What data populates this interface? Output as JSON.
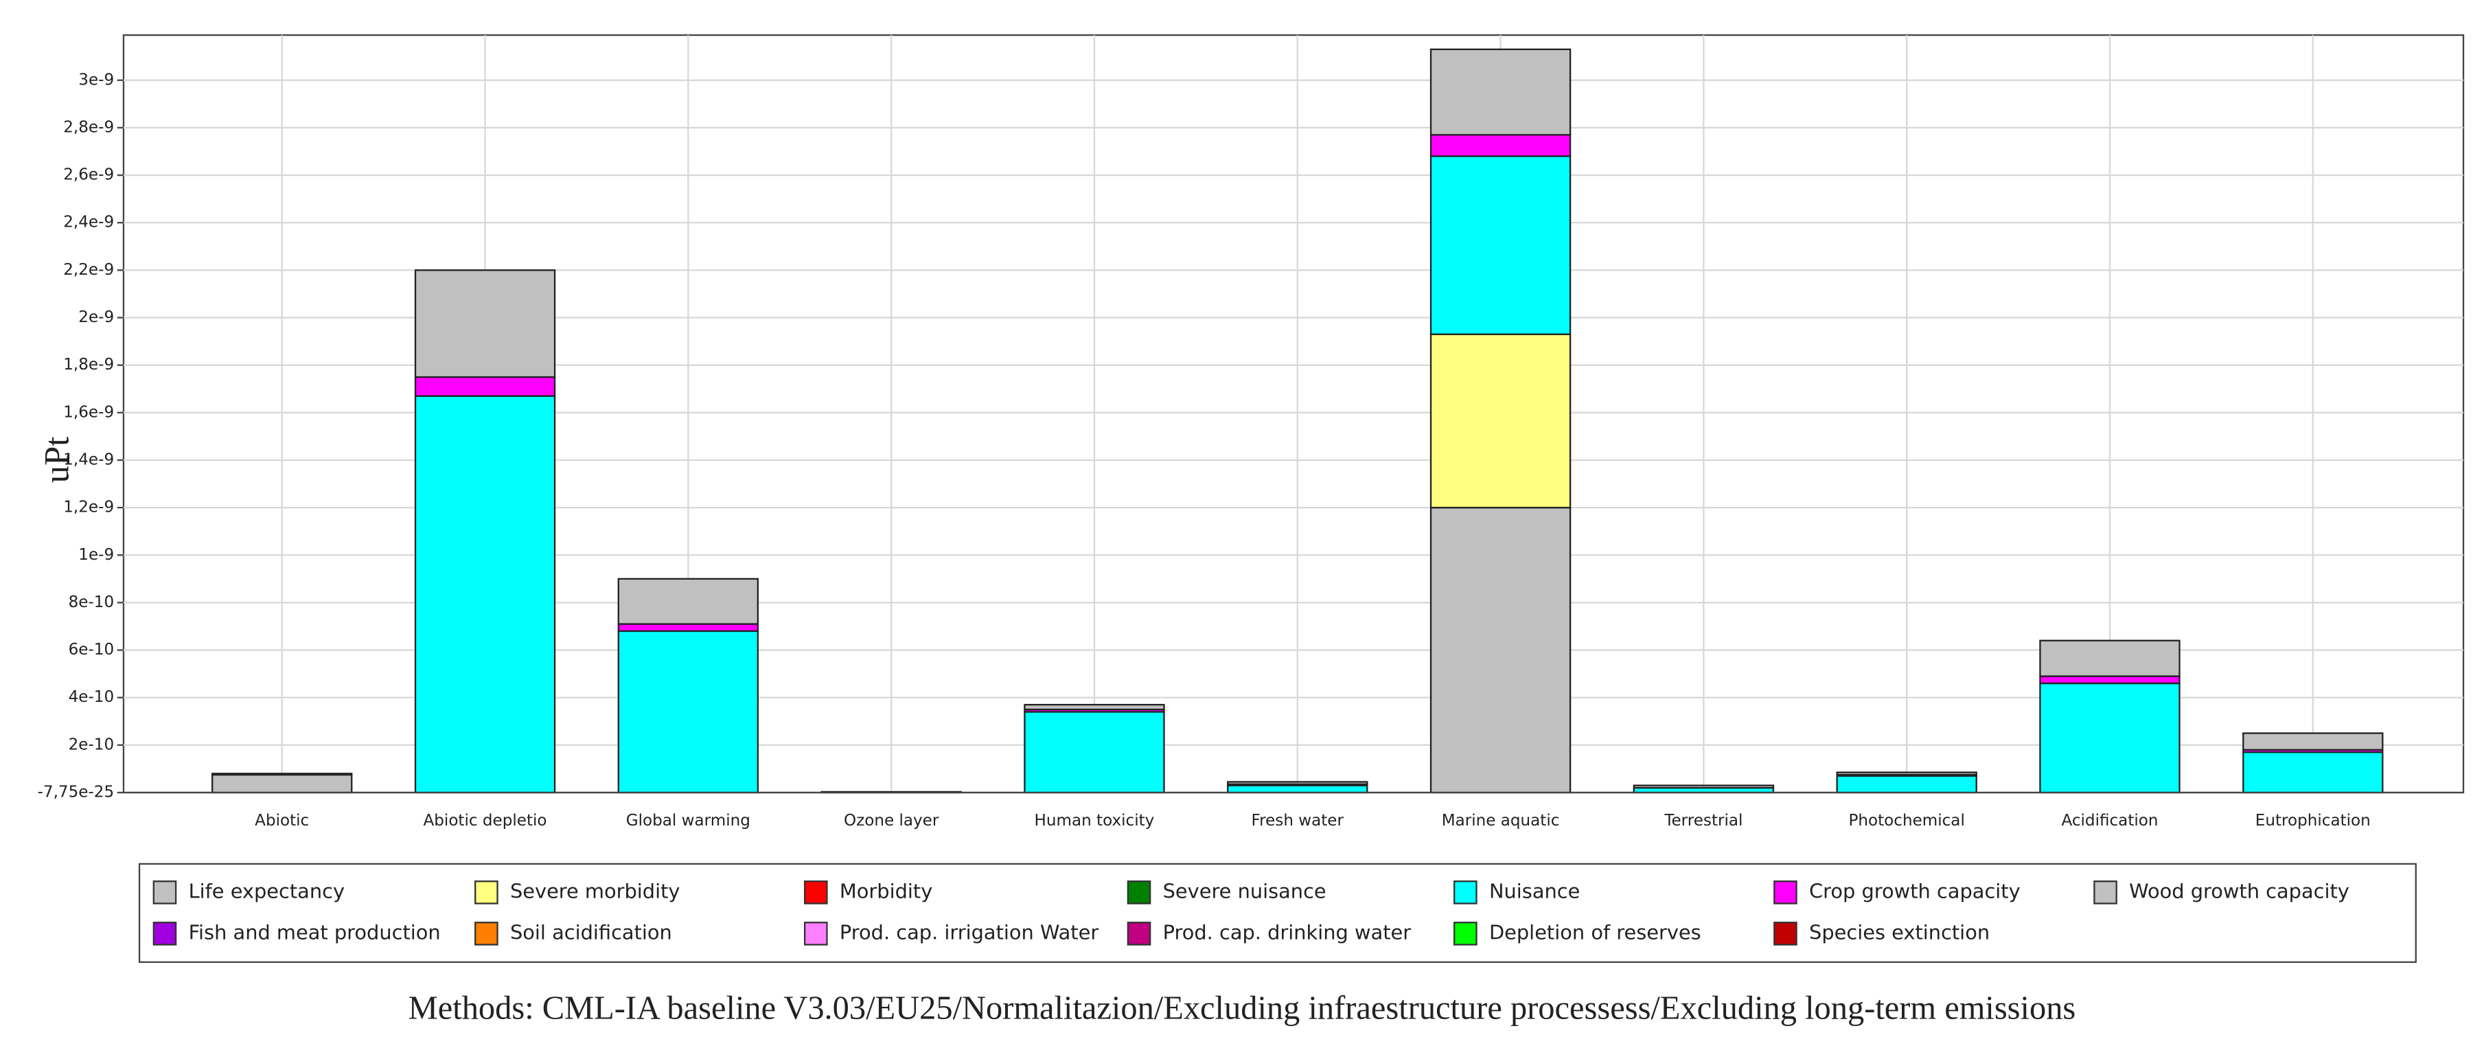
{
  "chart_data": {
    "type": "stacked-bar",
    "ylabel": "uPt",
    "footnote": "Methods: CML-IA baseline V3.03/EU25/Normalitazion/Excluding infraestructure processess/Excluding long-term emissions",
    "categories": [
      "Abiotic",
      "Abiotic depletio",
      "Global warming",
      "Ozone layer",
      "Human toxicity",
      "Fresh water",
      "Marine aquatic",
      "Terrestrial",
      "Photochemical",
      "Acidification",
      "Eutrophication"
    ],
    "ylim": [
      -7.75e-25,
      3.19e-09
    ],
    "yticks": [
      {
        "value": -7.75e-25,
        "label": "-7,75e-25"
      },
      2e-10,
      4e-10,
      6e-10,
      8e-10,
      1e-09,
      {
        "value": 1.2e-09,
        "label": "1,2e-9"
      },
      {
        "value": 1.4e-09,
        "label": "1,4e-9"
      },
      {
        "value": 1.6e-09,
        "label": "1,6e-9"
      },
      {
        "value": 1.8e-09,
        "label": "1,8e-9"
      },
      2e-09,
      {
        "value": 2.2e-09,
        "label": "2,2e-9"
      },
      {
        "value": 2.4e-09,
        "label": "2,4e-9"
      },
      {
        "value": 2.6e-09,
        "label": "2,6e-9"
      },
      {
        "value": 2.8e-09,
        "label": "2,8e-9"
      },
      3e-09
    ],
    "grid": true,
    "series": [
      {
        "name": "Life expectancy",
        "color": "#c0c0c0",
        "values": [
          7.5e-11,
          0,
          0,
          0,
          0,
          0,
          1.2e-09,
          0,
          0,
          0,
          0
        ]
      },
      {
        "name": "Severe morbidity",
        "color": "#ffff80",
        "values": [
          0,
          0,
          0,
          0,
          0,
          0,
          7.3e-10,
          0,
          0,
          0,
          0
        ]
      },
      {
        "name": "Morbidity",
        "color": "#ff0000",
        "values": [
          0,
          0,
          0,
          0,
          0,
          0,
          0,
          0,
          0,
          0,
          0
        ]
      },
      {
        "name": "Severe nuisance",
        "color": "#008000",
        "values": [
          0,
          0,
          0,
          0,
          0,
          0,
          0,
          0,
          0,
          0,
          0
        ]
      },
      {
        "name": "Nuisance",
        "color": "#00ffff",
        "values": [
          5e-12,
          1.67e-09,
          6.8e-10,
          3e-12,
          3.4e-10,
          3e-11,
          7.5e-10,
          2e-11,
          7e-11,
          4.6e-10,
          1.7e-10
        ]
      },
      {
        "name": "Crop growth capacity",
        "color": "#ff00ff",
        "values": [
          0,
          8e-11,
          3e-11,
          0,
          1e-11,
          5e-12,
          9e-11,
          0,
          5e-12,
          3e-11,
          1e-11
        ]
      },
      {
        "name": "Wood growth capacity",
        "color": "#c0c0c0",
        "values": [
          0,
          4.5e-10,
          1.9e-10,
          0,
          2e-11,
          1e-11,
          3.6e-10,
          1e-11,
          1e-11,
          1.5e-10,
          7e-11
        ]
      },
      {
        "name": "Fish and meat production",
        "color": "#a000e0",
        "values": [
          0,
          0,
          0,
          0,
          0,
          0,
          0,
          0,
          0,
          0,
          0
        ]
      },
      {
        "name": "Soil acidification",
        "color": "#ff8000",
        "values": [
          0,
          0,
          0,
          0,
          0,
          0,
          0,
          0,
          0,
          0,
          0
        ]
      },
      {
        "name": "Prod. cap. irrigation Water",
        "color": "#ff80ff",
        "values": [
          0,
          0,
          0,
          0,
          0,
          0,
          0,
          0,
          0,
          0,
          0
        ]
      },
      {
        "name": "Prod. cap. drinking water",
        "color": "#c00080",
        "values": [
          0,
          0,
          0,
          0,
          0,
          0,
          0,
          0,
          0,
          0,
          0
        ]
      },
      {
        "name": "Depletion of reserves",
        "color": "#00ff00",
        "values": [
          0,
          0,
          0,
          0,
          0,
          0,
          0,
          0,
          0,
          0,
          0
        ]
      },
      {
        "name": "Species extinction",
        "color": "#c00000",
        "values": [
          0,
          0,
          0,
          0,
          0,
          0,
          0,
          0,
          0,
          0,
          0
        ]
      }
    ]
  }
}
